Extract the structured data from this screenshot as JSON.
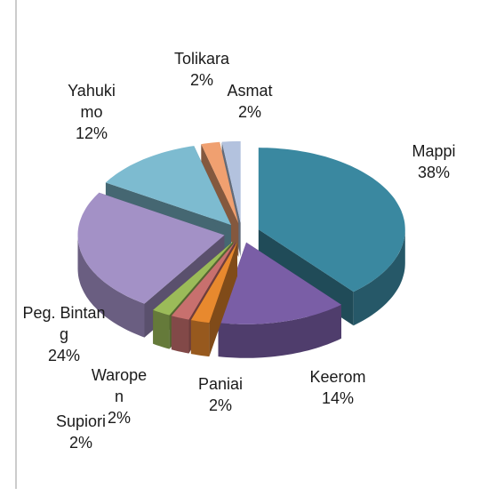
{
  "chart_data": {
    "type": "pie3d",
    "categories": [
      "Mappi",
      "Keerom",
      "Paniai",
      "Waropen",
      "Supiori",
      "Peg. Bintang",
      "Yahukimo",
      "Tolikara",
      "Asmat"
    ],
    "values": [
      38,
      14,
      2,
      2,
      2,
      24,
      12,
      2,
      2
    ],
    "value_labels": [
      "38%",
      "14%",
      "2%",
      "2%",
      "2%",
      "24%",
      "12%",
      "2%",
      "2%"
    ],
    "colors": [
      "#3a88a0",
      "#7a5ea6",
      "#e8892e",
      "#c8706e",
      "#9bbb59",
      "#a391c6",
      "#7dbbd0",
      "#f0a070",
      "#b3c2de"
    ]
  }
}
